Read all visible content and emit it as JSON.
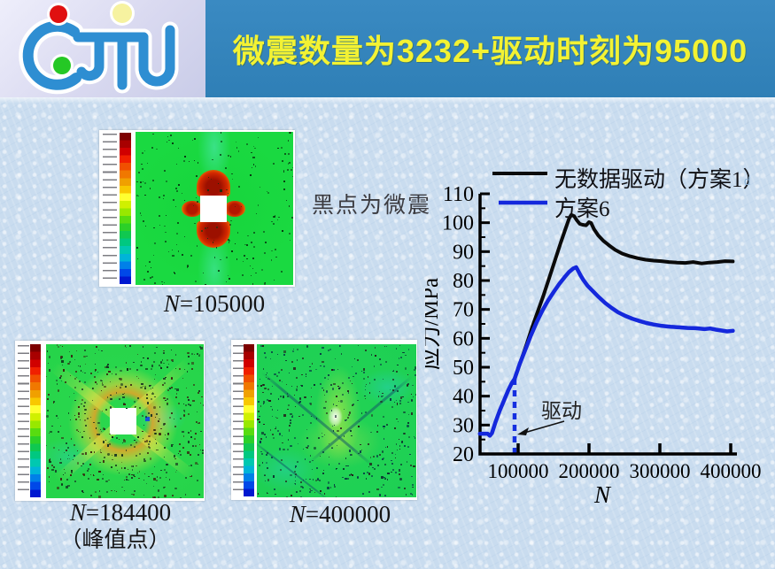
{
  "header": {
    "title": "微震数量为3232+驱动时刻为95000",
    "logo_text": "CJTU",
    "band_color": "#3181ba",
    "title_color": "#f3f233",
    "logo_blue": "#2e8ed2",
    "logo_dot_red": "#e01010",
    "logo_dot_yellow": "#f6f2a0",
    "logo_dot_green": "#25c825"
  },
  "annotations": {
    "black_dots_note": "黑点为微震",
    "watermark": "d"
  },
  "figures": [
    {
      "id": "fig1",
      "var": "N",
      "rest": "=105000",
      "caption2": ""
    },
    {
      "id": "fig2",
      "var": "N",
      "rest": "=184400",
      "caption2": "（峰值点）"
    },
    {
      "id": "fig3",
      "var": "N",
      "rest": "=400000",
      "caption2": ""
    }
  ],
  "colorbar_colors": [
    "#7d0000",
    "#a80000",
    "#d00000",
    "#f02000",
    "#f05000",
    "#f07800",
    "#f0a000",
    "#f8c800",
    "#ffff30",
    "#d0f000",
    "#98e800",
    "#58dc10",
    "#2cd028",
    "#10c850",
    "#00c880",
    "#00c8b0",
    "#00b4d8",
    "#0080e8",
    "#0048e8",
    "#0018d0"
  ],
  "chart_data": {
    "type": "line",
    "title": "",
    "xlabel": "N",
    "ylabel": "应力/MPa",
    "xlim": [
      46000,
      406000
    ],
    "ylim": [
      20,
      110
    ],
    "x_ticks": [
      100000,
      200000,
      300000,
      400000
    ],
    "y_ticks": [
      20,
      30,
      40,
      50,
      60,
      70,
      80,
      90,
      100,
      110
    ],
    "grid": false,
    "legend_position": "top-left",
    "series": [
      {
        "name": "无数据驱动（方案1）",
        "color": "#0a0a0a",
        "width": 4,
        "points": [
          [
            95000,
            46
          ],
          [
            100000,
            49.5
          ],
          [
            105000,
            53
          ],
          [
            112000,
            58
          ],
          [
            120000,
            64
          ],
          [
            128000,
            69.5
          ],
          [
            136000,
            75
          ],
          [
            144000,
            81
          ],
          [
            152000,
            87
          ],
          [
            160000,
            93
          ],
          [
            167000,
            98
          ],
          [
            172000,
            101.5
          ],
          [
            175000,
            102.7
          ],
          [
            179000,
            102.3
          ],
          [
            183000,
            100.8
          ],
          [
            187000,
            99.6
          ],
          [
            191000,
            99.3
          ],
          [
            196000,
            99.1
          ],
          [
            200000,
            100.2
          ],
          [
            203000,
            99.9
          ],
          [
            207000,
            97.8
          ],
          [
            213000,
            95.6
          ],
          [
            220000,
            93.8
          ],
          [
            228000,
            92.2
          ],
          [
            237000,
            90.6
          ],
          [
            247000,
            89.3
          ],
          [
            258000,
            88.4
          ],
          [
            269000,
            87.7
          ],
          [
            280000,
            87.2
          ],
          [
            291000,
            86.9
          ],
          [
            302000,
            86.7
          ],
          [
            313000,
            86.4
          ],
          [
            324000,
            86.2
          ],
          [
            336000,
            86.1
          ],
          [
            347000,
            86.4
          ],
          [
            359000,
            85.9
          ],
          [
            370000,
            86.2
          ],
          [
            381000,
            86.4
          ],
          [
            392000,
            86.7
          ],
          [
            403000,
            86.6
          ]
        ]
      },
      {
        "name": "方案6",
        "color": "#1428dc",
        "width": 4.5,
        "points": [
          [
            46000,
            27
          ],
          [
            52000,
            27
          ],
          [
            57000,
            27
          ],
          [
            60000,
            26.3
          ],
          [
            63000,
            27.2
          ],
          [
            68000,
            31
          ],
          [
            74000,
            35
          ],
          [
            80000,
            38.5
          ],
          [
            86000,
            42
          ],
          [
            91000,
            44.5
          ],
          [
            95000,
            46
          ],
          [
            102000,
            51
          ],
          [
            110000,
            56
          ],
          [
            118000,
            61
          ],
          [
            126000,
            65.5
          ],
          [
            134000,
            69.5
          ],
          [
            142000,
            73
          ],
          [
            150000,
            76
          ],
          [
            158000,
            78.8
          ],
          [
            166000,
            81.3
          ],
          [
            172000,
            83
          ],
          [
            178000,
            84.2
          ],
          [
            182000,
            84.6
          ],
          [
            185000,
            83.2
          ],
          [
            188000,
            81.8
          ],
          [
            192000,
            80.2
          ],
          [
            198000,
            78.2
          ],
          [
            206000,
            76.2
          ],
          [
            214000,
            74.2
          ],
          [
            223000,
            72.2
          ],
          [
            232000,
            70.5
          ],
          [
            241000,
            69
          ],
          [
            251000,
            67.8
          ],
          [
            261000,
            66.8
          ],
          [
            271000,
            66
          ],
          [
            281000,
            65.3
          ],
          [
            291000,
            64.8
          ],
          [
            303000,
            64.3
          ],
          [
            315000,
            64
          ],
          [
            327000,
            63.8
          ],
          [
            339000,
            63.6
          ],
          [
            351000,
            63.5
          ],
          [
            363000,
            63.2
          ],
          [
            371000,
            63.4
          ],
          [
            379000,
            63
          ],
          [
            387000,
            62.7
          ],
          [
            395000,
            62.4
          ],
          [
            403000,
            62.6
          ]
        ]
      }
    ],
    "drive_line": {
      "x": 95000,
      "y_bottom": 20,
      "y_top": 46,
      "label": "驱动",
      "style": "dashed",
      "color": "#1530e0"
    }
  }
}
